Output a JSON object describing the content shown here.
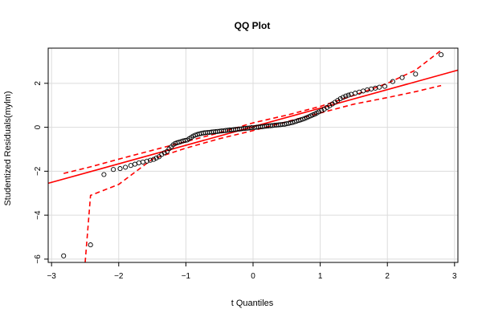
{
  "chart_data": {
    "type": "scatter",
    "title": "QQ Plot",
    "xlabel": "t Quantiles",
    "ylabel": "Studentized Residuals(mylm)",
    "xlim": [
      -3.05,
      3.05
    ],
    "ylim": [
      -6.15,
      3.6
    ],
    "x_ticks": [
      -3,
      -2,
      -1,
      0,
      1,
      2,
      3
    ],
    "y_ticks": [
      -6,
      -4,
      -2,
      0,
      2
    ],
    "x_tick_labels": [
      "−3",
      "−2",
      "−1",
      "0",
      "1",
      "2",
      "3"
    ],
    "y_tick_labels": [
      "−6",
      "−4",
      "−2",
      "0",
      "2"
    ],
    "grid": true,
    "points": {
      "x": [
        -2.82,
        -2.42,
        -2.22,
        -2.08,
        -1.98,
        -1.9,
        -1.82,
        -1.76,
        -1.7,
        -1.64,
        -1.58,
        -1.53,
        -1.48,
        -1.44,
        -1.4,
        -1.36,
        -1.32,
        -1.28,
        -1.25,
        -1.22,
        -1.19,
        -1.16,
        -1.13,
        -1.1,
        -1.07,
        -1.04,
        -1.01,
        -0.98,
        -0.95,
        -0.92,
        -0.89,
        -0.86,
        -0.83,
        -0.8,
        -0.77,
        -0.74,
        -0.71,
        -0.68,
        -0.65,
        -0.62,
        -0.59,
        -0.56,
        -0.53,
        -0.5,
        -0.47,
        -0.44,
        -0.41,
        -0.38,
        -0.35,
        -0.32,
        -0.29,
        -0.26,
        -0.23,
        -0.2,
        -0.17,
        -0.14,
        -0.11,
        -0.08,
        -0.05,
        -0.02,
        0.02,
        0.05,
        0.08,
        0.11,
        0.14,
        0.17,
        0.2,
        0.23,
        0.26,
        0.29,
        0.32,
        0.35,
        0.38,
        0.41,
        0.44,
        0.47,
        0.5,
        0.53,
        0.56,
        0.59,
        0.62,
        0.65,
        0.68,
        0.71,
        0.74,
        0.77,
        0.8,
        0.83,
        0.86,
        0.89,
        0.92,
        0.95,
        0.98,
        1.02,
        1.06,
        1.1,
        1.14,
        1.18,
        1.22,
        1.26,
        1.3,
        1.34,
        1.38,
        1.42,
        1.46,
        1.52,
        1.58,
        1.64,
        1.7,
        1.76,
        1.82,
        1.88,
        1.96,
        2.08,
        2.22,
        2.42,
        2.8
      ],
      "y": [
        -5.85,
        -5.35,
        -2.15,
        -1.92,
        -1.88,
        -1.82,
        -1.74,
        -1.68,
        -1.62,
        -1.58,
        -1.54,
        -1.5,
        -1.46,
        -1.4,
        -1.34,
        -1.24,
        -1.16,
        -1.1,
        -0.98,
        -0.9,
        -0.8,
        -0.74,
        -0.7,
        -0.68,
        -0.65,
        -0.62,
        -0.6,
        -0.58,
        -0.52,
        -0.46,
        -0.4,
        -0.36,
        -0.33,
        -0.3,
        -0.28,
        -0.26,
        -0.25,
        -0.24,
        -0.23,
        -0.22,
        -0.21,
        -0.2,
        -0.19,
        -0.18,
        -0.17,
        -0.16,
        -0.15,
        -0.14,
        -0.13,
        -0.12,
        -0.11,
        -0.1,
        -0.09,
        -0.08,
        -0.07,
        -0.06,
        -0.05,
        -0.04,
        -0.03,
        -0.02,
        -0.01,
        0.0,
        0.01,
        0.02,
        0.03,
        0.04,
        0.05,
        0.06,
        0.07,
        0.08,
        0.09,
        0.1,
        0.11,
        0.12,
        0.13,
        0.14,
        0.16,
        0.18,
        0.2,
        0.22,
        0.25,
        0.28,
        0.31,
        0.34,
        0.37,
        0.4,
        0.44,
        0.48,
        0.52,
        0.56,
        0.6,
        0.65,
        0.7,
        0.76,
        0.82,
        0.9,
        0.98,
        1.06,
        1.14,
        1.22,
        1.3,
        1.36,
        1.42,
        1.46,
        1.5,
        1.55,
        1.6,
        1.65,
        1.7,
        1.74,
        1.78,
        1.82,
        1.86,
        2.08,
        2.26,
        2.42,
        3.3
      ]
    },
    "fit_line": {
      "color": "#ff0000",
      "x": [
        -3.05,
        3.05
      ],
      "y": [
        -2.55,
        2.6
      ]
    },
    "confidence_bands": {
      "color": "#ff0000",
      "style": "dashed",
      "upper": {
        "x": [
          -2.82,
          -2.42,
          -2.0,
          -1.5,
          -1.0,
          -0.5,
          0.0,
          0.5,
          1.0,
          1.5,
          2.0,
          2.42,
          2.8
        ],
        "y": [
          -2.1,
          -1.8,
          -1.45,
          -1.05,
          -0.65,
          -0.25,
          0.2,
          0.55,
          0.95,
          1.45,
          2.0,
          2.6,
          3.5
        ]
      },
      "lower": {
        "x": [
          -2.5,
          -2.42,
          -2.0,
          -1.5,
          -1.0,
          -0.5,
          0.0,
          0.5,
          1.0,
          1.5,
          2.0,
          2.42,
          2.8
        ],
        "y": [
          -6.15,
          -3.1,
          -2.6,
          -1.45,
          -0.95,
          -0.52,
          -0.15,
          0.25,
          0.65,
          1.05,
          1.35,
          1.62,
          1.9
        ]
      }
    },
    "colors": {
      "points": "#000000",
      "line": "#ff0000",
      "grid": "#dcdcdc",
      "axes": "#000000"
    }
  }
}
